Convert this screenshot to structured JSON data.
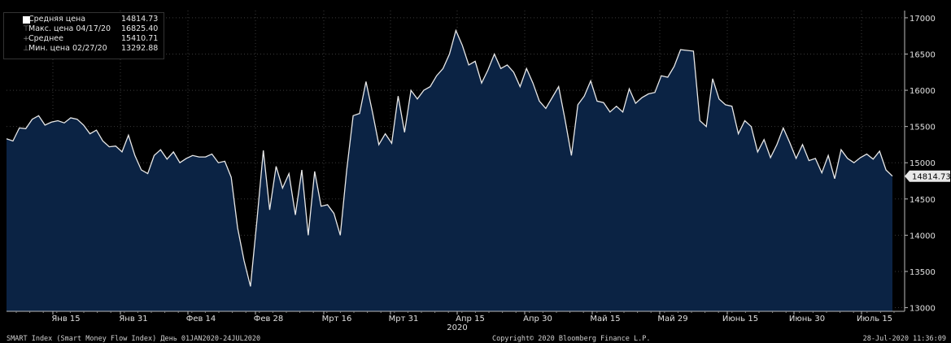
{
  "colors": {
    "background": "#000000",
    "area_fill": "#0b2344",
    "line": "#e8e8e8",
    "grid": "#3a3a3a",
    "last_label_bg": "#e8e8e8"
  },
  "legend": {
    "items": [
      {
        "label": "Средняя цена",
        "value": "14814.73",
        "icon": "filled-square-icon"
      },
      {
        "label": "Макс. цена 04/17/20",
        "value": "16825.40",
        "icon": "max-marker-icon"
      },
      {
        "label": "Среднее",
        "value": "15410.71",
        "icon": "average-marker-icon"
      },
      {
        "label": "Мин. цена 02/27/20",
        "value": "13292.88",
        "icon": "min-marker-icon"
      }
    ]
  },
  "footer": {
    "left": "SMART Index (Smart Money Flow Index) День 01JAN2020-24JUL2020",
    "center": "Copyright© 2020 Bloomberg Finance L.P.",
    "right": "28-Jul-2020 11:36:09"
  },
  "chart_data": {
    "type": "area",
    "y_ticks": [
      13000,
      13500,
      14000,
      14500,
      15000,
      15500,
      16000,
      16500,
      17000
    ],
    "ylim": [
      12950,
      17100
    ],
    "x_ticks": [
      "Янв 15",
      "Янв 31",
      "Фев 14",
      "Фев 28",
      "Мрт 16",
      "Мрт 31",
      "Апр 15",
      "Апр 30",
      "Май 15",
      "Май 29",
      "Июнь 15",
      "Июнь 30",
      "Июль 15"
    ],
    "x_year_label": "2020",
    "last_value_label": "14814.73",
    "series": [
      {
        "values": [
          15330,
          15300,
          15480,
          15470,
          15600,
          15650,
          15520,
          15560,
          15580,
          15550,
          15620,
          15600,
          15520,
          15400,
          15450,
          15300,
          15220,
          15230,
          15150,
          15380,
          15100,
          14900,
          14850,
          15100,
          15180,
          15050,
          15150,
          15000,
          15060,
          15100,
          15080,
          15080,
          15120,
          15000,
          15020,
          14800,
          14100,
          13650,
          13293,
          14200,
          15170,
          14350,
          14950,
          14650,
          14850,
          14280,
          14900,
          14000,
          14880,
          14400,
          14420,
          14300,
          14000,
          14900,
          15650,
          15680,
          16120,
          15700,
          15250,
          15400,
          15270,
          15920,
          15420,
          16000,
          15880,
          16000,
          16050,
          16200,
          16300,
          16500,
          16825,
          16620,
          16350,
          16400,
          16100,
          16280,
          16500,
          16300,
          16350,
          16250,
          16050,
          16300,
          16100,
          15850,
          15750,
          15900,
          16050,
          15600,
          15100,
          15800,
          15920,
          16130,
          15850,
          15830,
          15700,
          15780,
          15700,
          16020,
          15820,
          15900,
          15950,
          15970,
          16200,
          16180,
          16330,
          16560,
          16550,
          16540,
          15580,
          15500,
          16160,
          15880,
          15800,
          15780,
          15400,
          15580,
          15500,
          15150,
          15320,
          15070,
          15250,
          15480,
          15280,
          15060,
          15250,
          15030,
          15060,
          14860,
          15100,
          14780,
          15180,
          15060,
          15000,
          15070,
          15120,
          15050,
          15160,
          14900,
          14815
        ]
      }
    ]
  }
}
